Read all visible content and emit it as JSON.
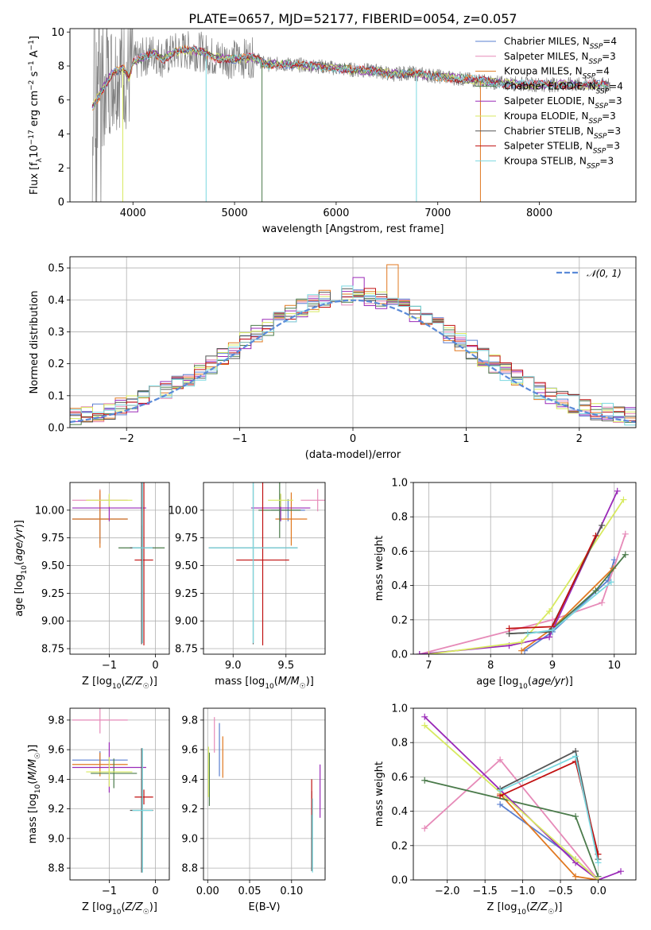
{
  "figure_title": "PLATE=0657, MJD=52177, FIBERID=0054, z=0.057",
  "colors": [
    "#5a7fd0",
    "#e68ab8",
    "#e07820",
    "#4a7a4a",
    "#9a2ab8",
    "#d8ea60",
    "#555555",
    "#c01010",
    "#7ad8e0"
  ],
  "data_color": "#808080",
  "legend_labels": {
    "spectrum": [
      "Chabrier MILES, N",
      "Salpeter MILES, N",
      "Kroupa MILES, N",
      "Chabrier ELODIE, N",
      "Salpeter ELODIE, N",
      "Kroupa ELODIE, N",
      "Chabrier STELIB, N",
      "Salpeter STELIB, N",
      "Kroupa STELIB, N"
    ],
    "spectrum_sub": "SSP",
    "spectrum_counts": [
      "=4",
      "=3",
      "=4",
      "=4",
      "=3",
      "=3",
      "=3",
      "=3",
      "=3"
    ],
    "gaussian": "𝒩(0, 1)"
  },
  "chart_data": [
    {
      "id": "spectrum",
      "type": "line",
      "xlabel": "wavelength [Angstrom, rest frame]",
      "ylabel": "Flux [f_λ10^-17 erg cm^-2 s^-1 A^-1]",
      "xlim": [
        3380,
        8950
      ],
      "ylim": [
        0,
        10.2
      ],
      "xticks": [
        4000,
        5000,
        6000,
        7000,
        8000
      ],
      "yticks": [
        0,
        2,
        4,
        6,
        8,
        10
      ],
      "grid": false,
      "legend": "top-right",
      "continuum_knots": [
        [
          3600,
          5.6
        ],
        [
          3700,
          6.6
        ],
        [
          3800,
          7.6
        ],
        [
          3900,
          7.9
        ],
        [
          3960,
          7.3
        ],
        [
          4000,
          8.2
        ],
        [
          4100,
          8.5
        ],
        [
          4200,
          8.8
        ],
        [
          4300,
          8.4
        ],
        [
          4400,
          8.8
        ],
        [
          4500,
          8.9
        ],
        [
          4600,
          8.9
        ],
        [
          4700,
          8.8
        ],
        [
          4800,
          8.5
        ],
        [
          5000,
          8.4
        ],
        [
          5200,
          8.5
        ],
        [
          5300,
          8.1
        ],
        [
          5500,
          8.1
        ],
        [
          5800,
          8.0
        ],
        [
          6100,
          7.8
        ],
        [
          6400,
          7.7
        ],
        [
          6550,
          7.5
        ],
        [
          6700,
          7.6
        ],
        [
          7000,
          7.4
        ],
        [
          7300,
          7.2
        ],
        [
          7600,
          7.0
        ],
        [
          8000,
          6.9
        ],
        [
          8400,
          6.9
        ],
        [
          8700,
          6.9
        ]
      ]
    },
    {
      "id": "residuals",
      "type": "step",
      "xlabel": "(data-model)/error",
      "ylabel": "Normed distribution",
      "xlim": [
        -2.5,
        2.5
      ],
      "ylim": [
        0,
        0.535
      ],
      "xticks": [
        -2,
        -1,
        0,
        1,
        2
      ],
      "yticks": [
        0.0,
        0.1,
        0.2,
        0.3,
        0.4,
        0.5
      ],
      "grid": true,
      "legend": "top-right",
      "bin_width": 0.1
    },
    {
      "id": "age_vs_Z",
      "type": "errorbar",
      "xlabel": "Z [log10(Z/Z☉)]",
      "ylabel": "age [log10(age/yr)]",
      "xlim": [
        -1.85,
        0.3
      ],
      "ylim": [
        8.7,
        10.25
      ],
      "xticks": [
        -1,
        0
      ],
      "yticks": [
        8.75,
        9.0,
        9.25,
        9.5,
        9.75,
        10.0
      ],
      "grid": true,
      "points": [
        {
          "x": -1.2,
          "xerr": 0.6,
          "y": 9.92,
          "yerr": 0.22
        },
        {
          "x": -1.2,
          "xerr": 0.6,
          "y": 10.09,
          "yerr": 0.1
        },
        {
          "x": -1.2,
          "xerr": 0.6,
          "y": 9.92,
          "yerr": 0.26
        },
        {
          "x": -0.3,
          "xerr": 0.5,
          "y": 9.66,
          "yerr": 0.2
        },
        {
          "x": -1.0,
          "xerr": 0.8,
          "y": 10.02,
          "yerr": 0.12
        },
        {
          "x": -1.0,
          "xerr": 0.5,
          "y": 10.09,
          "yerr": 0.06
        },
        {
          "x": -0.3,
          "xerr": 0.25,
          "y": 9.66,
          "yerr": 0.87
        },
        {
          "x": -0.25,
          "xerr": 0.2,
          "y": 9.55,
          "yerr": 0.77
        },
        {
          "x": -0.28,
          "xerr": 0.22,
          "y": 9.66,
          "yerr": 0.86
        }
      ]
    },
    {
      "id": "age_vs_mass",
      "type": "errorbar",
      "xlabel": "mass [log10(M/M☉)]",
      "ylabel": "",
      "xlim": [
        8.72,
        9.87
      ],
      "ylim": [
        8.7,
        10.25
      ],
      "xticks": [
        9.0,
        9.5
      ],
      "yticks": [
        8.75,
        9.0,
        9.25,
        9.5,
        9.75,
        10.0
      ],
      "grid": true,
      "points": [
        {
          "x": 9.52,
          "xerr": 0.16,
          "y": 10.0,
          "yerr": 0.1
        },
        {
          "x": 9.8,
          "xerr": 0.16,
          "y": 10.09,
          "yerr": 0.1
        },
        {
          "x": 9.55,
          "xerr": 0.15,
          "y": 9.92,
          "yerr": 0.24
        },
        {
          "x": 9.44,
          "xerr": 0.2,
          "y": 10.0,
          "yerr": 0.25
        },
        {
          "x": 9.45,
          "xerr": 0.28,
          "y": 10.02,
          "yerr": 0.12
        },
        {
          "x": 9.45,
          "xerr": 0.12,
          "y": 10.09,
          "yerr": 0.06
        },
        {
          "x": 9.19,
          "xerr": 0.42,
          "y": 9.66,
          "yerr": 0.87
        },
        {
          "x": 9.28,
          "xerr": 0.25,
          "y": 9.55,
          "yerr": 0.77
        },
        {
          "x": 9.19,
          "xerr": 0.42,
          "y": 9.66,
          "yerr": 0.86
        }
      ]
    },
    {
      "id": "weight_vs_age",
      "type": "line",
      "xlabel": "age [log10(age/yr)]",
      "ylabel": "mass weight",
      "xlim": [
        6.75,
        10.35
      ],
      "ylim": [
        0,
        1.0
      ],
      "xticks": [
        7,
        8,
        9,
        10
      ],
      "yticks": [
        0.0,
        0.2,
        0.4,
        0.6,
        0.8,
        1.0
      ],
      "grid": true,
      "series": [
        {
          "x": [
            8.55,
            9.0,
            9.9,
            10.0
          ],
          "y": [
            0.02,
            0.13,
            0.43,
            0.55
          ]
        },
        {
          "x": [
            6.85,
            9.0,
            9.8,
            10.18
          ],
          "y": [
            0.0,
            0.2,
            0.3,
            0.7
          ]
        },
        {
          "x": [
            8.5,
            9.0,
            9.98
          ],
          "y": [
            0.02,
            0.15,
            0.5
          ]
        },
        {
          "x": [
            8.3,
            8.95,
            9.7,
            10.18
          ],
          "y": [
            0.12,
            0.13,
            0.37,
            0.58
          ]
        },
        {
          "x": [
            6.85,
            8.3,
            8.95,
            10.05
          ],
          "y": [
            0.0,
            0.05,
            0.1,
            0.95
          ]
        },
        {
          "x": [
            7.0,
            8.5,
            8.95,
            10.15
          ],
          "y": [
            0.0,
            0.07,
            0.25,
            0.9
          ]
        },
        {
          "x": [
            8.3,
            8.95,
            9.8
          ],
          "y": [
            0.12,
            0.13,
            0.75
          ]
        },
        {
          "x": [
            8.3,
            9.0,
            9.7
          ],
          "y": [
            0.15,
            0.16,
            0.69
          ]
        },
        {
          "x": [
            8.6,
            9.0,
            9.95
          ],
          "y": [
            0.12,
            0.14,
            0.42
          ]
        }
      ]
    },
    {
      "id": "mass_vs_Z",
      "type": "errorbar",
      "xlabel": "Z [log10(Z/Z☉)]",
      "ylabel": "mass [log10(M/M☉)]",
      "xlim": [
        -1.85,
        0.3
      ],
      "ylim": [
        8.72,
        9.88
      ],
      "xticks": [
        -1,
        0
      ],
      "yticks": [
        8.8,
        9.0,
        9.2,
        9.4,
        9.6,
        9.8
      ],
      "grid": true,
      "points": [
        {
          "x": -1.2,
          "xerr": 0.6,
          "y": 9.53,
          "yerr": 0.06
        },
        {
          "x": -1.2,
          "xerr": 0.6,
          "y": 9.8,
          "yerr": 0.09
        },
        {
          "x": -1.2,
          "xerr": 0.6,
          "y": 9.5,
          "yerr": 0.08
        },
        {
          "x": -0.9,
          "xerr": 0.5,
          "y": 9.44,
          "yerr": 0.1
        },
        {
          "x": -1.0,
          "xerr": 0.8,
          "y": 9.48,
          "yerr": 0.17
        },
        {
          "x": -1.0,
          "xerr": 0.5,
          "y": 9.45,
          "yerr": 0.1
        },
        {
          "x": -0.3,
          "xerr": 0.25,
          "y": 9.19,
          "yerr": 0.42
        },
        {
          "x": -0.25,
          "xerr": 0.2,
          "y": 9.28,
          "yerr": 0.05
        },
        {
          "x": -0.28,
          "xerr": 0.22,
          "y": 9.19,
          "yerr": 0.42
        }
      ]
    },
    {
      "id": "mass_vs_EBV",
      "type": "errorbar",
      "xlabel": "E(B-V)",
      "ylabel": "",
      "xlim": [
        -0.005,
        0.14
      ],
      "ylim": [
        8.72,
        9.88
      ],
      "xticks": [
        0.0,
        0.05,
        0.1
      ],
      "yticks": [
        8.8,
        9.0,
        9.2,
        9.4,
        9.6,
        9.8
      ],
      "grid": true,
      "points": [
        {
          "x": 0.014,
          "y": 9.6,
          "yerr": 0.18
        },
        {
          "x": 0.008,
          "y": 9.7,
          "yerr": 0.12
        },
        {
          "x": 0.018,
          "y": 9.55,
          "yerr": 0.14
        },
        {
          "x": 0.002,
          "y": 9.4,
          "yerr": 0.18
        },
        {
          "x": 0.134,
          "y": 9.32,
          "yerr": 0.18
        },
        {
          "x": 0.001,
          "y": 9.45,
          "yerr": 0.17
        },
        {
          "x": 0.124,
          "y": 9.05,
          "yerr": 0.27
        },
        {
          "x": 0.124,
          "y": 9.28,
          "yerr": 0.12
        },
        {
          "x": 0.125,
          "y": 9.02,
          "yerr": 0.25
        }
      ]
    },
    {
      "id": "weight_vs_Z",
      "type": "line",
      "xlabel": "Z [log10(Z/Z☉)]",
      "ylabel": "mass weight",
      "xlim": [
        -2.45,
        0.5
      ],
      "ylim": [
        0,
        1.0
      ],
      "xticks": [
        -2.0,
        -1.5,
        -1.0,
        -0.5,
        0.0
      ],
      "yticks": [
        0.0,
        0.2,
        0.4,
        0.6,
        0.8,
        1.0
      ],
      "grid": true,
      "series": [
        {
          "x": [
            -1.3,
            -0.3,
            0.0
          ],
          "y": [
            0.44,
            0.12,
            0.0
          ]
        },
        {
          "x": [
            -2.3,
            -1.3,
            0.0
          ],
          "y": [
            0.3,
            0.7,
            0.0
          ]
        },
        {
          "x": [
            -1.3,
            -0.3,
            0.0
          ],
          "y": [
            0.5,
            0.02,
            0.0
          ]
        },
        {
          "x": [
            -2.3,
            -0.3,
            0.0
          ],
          "y": [
            0.58,
            0.37,
            0.02
          ]
        },
        {
          "x": [
            -2.3,
            -0.3,
            0.0,
            0.3
          ],
          "y": [
            0.95,
            0.1,
            0.0,
            0.05
          ]
        },
        {
          "x": [
            -2.3,
            -0.3,
            0.0
          ],
          "y": [
            0.9,
            0.12,
            0.0
          ]
        },
        {
          "x": [
            -1.3,
            -0.3,
            0.0
          ],
          "y": [
            0.53,
            0.75,
            0.12
          ]
        },
        {
          "x": [
            -1.3,
            -0.3,
            0.0
          ],
          "y": [
            0.49,
            0.69,
            0.15
          ]
        },
        {
          "x": [
            -1.3,
            -0.3,
            0.0
          ],
          "y": [
            0.52,
            0.72,
            0.1
          ]
        }
      ]
    }
  ]
}
